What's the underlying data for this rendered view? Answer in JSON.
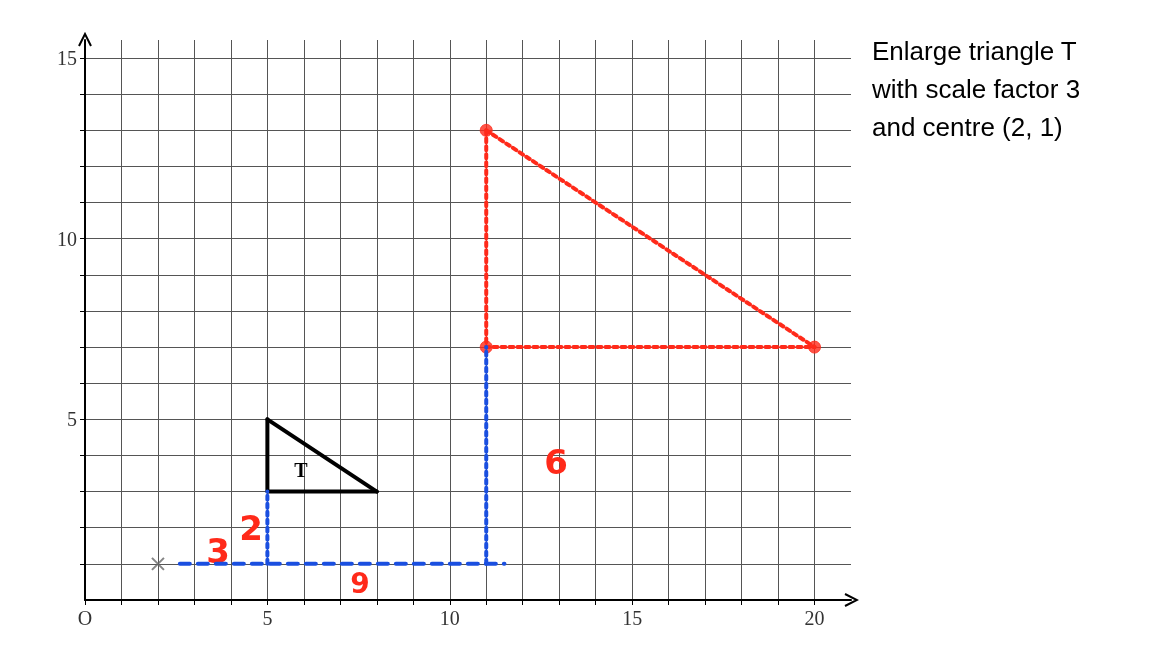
{
  "chart_data": {
    "type": "line",
    "xlim": [
      0,
      21
    ],
    "ylim": [
      0,
      15.5
    ],
    "xticks": [
      {
        "value": 0,
        "label": "O"
      },
      {
        "value": 1,
        "label": null
      },
      {
        "value": 2,
        "label": null
      },
      {
        "value": 3,
        "label": null
      },
      {
        "value": 4,
        "label": null
      },
      5,
      {
        "value": 6,
        "label": null
      },
      {
        "value": 7,
        "label": null
      },
      {
        "value": 8,
        "label": null
      },
      {
        "value": 9,
        "label": null
      },
      10,
      {
        "value": 11,
        "label": null
      },
      {
        "value": 12,
        "label": null
      },
      {
        "value": 13,
        "label": null
      },
      {
        "value": 14,
        "label": null
      },
      15,
      {
        "value": 16,
        "label": null
      },
      {
        "value": 17,
        "label": null
      },
      {
        "value": 18,
        "label": null
      },
      {
        "value": 19,
        "label": null
      },
      20
    ],
    "yticks": [
      {
        "value": 1,
        "label": null
      },
      {
        "value": 2,
        "label": null
      },
      {
        "value": 3,
        "label": null
      },
      {
        "value": 4,
        "label": null
      },
      5,
      {
        "value": 6,
        "label": null
      },
      {
        "value": 7,
        "label": null
      },
      {
        "value": 8,
        "label": null
      },
      {
        "value": 9,
        "label": null
      },
      10,
      {
        "value": 11,
        "label": null
      },
      {
        "value": 12,
        "label": null
      },
      {
        "value": 13,
        "label": null
      },
      {
        "value": 14,
        "label": null
      },
      15
    ],
    "grid": true,
    "series": [
      {
        "color": "#000000",
        "x": [
          5,
          5,
          8
        ],
        "values": [
          5,
          3,
          3
        ],
        "line_style": "solid",
        "marker": "none"
      },
      {
        "color": "#000000",
        "x": [
          5,
          8
        ],
        "values": [
          5,
          3
        ],
        "line_style": "solid",
        "marker": "none"
      },
      {
        "color": "#ff2a1a",
        "x": [
          11,
          11,
          20
        ],
        "values": [
          13,
          7,
          7
        ],
        "line_style": "dotted",
        "marker": "none"
      },
      {
        "color": "#ff2a1a",
        "x": [
          11,
          20
        ],
        "values": [
          13,
          7
        ],
        "line_style": "dotted",
        "marker": "none"
      },
      {
        "type": "scatter",
        "color": "#ff2a1a",
        "x": [
          11,
          11,
          20
        ],
        "values": [
          13,
          7,
          7
        ],
        "marker": "circle"
      },
      {
        "color": "#1a4fe0",
        "x": [
          2.6,
          11.5
        ],
        "values": [
          1,
          1
        ],
        "line_style": "dashed",
        "marker": "none"
      },
      {
        "color": "#1a4fe0",
        "x": [
          5,
          5
        ],
        "values": [
          1,
          3
        ],
        "line_style": "dotted",
        "marker": "none"
      },
      {
        "color": "#1a4fe0",
        "x": [
          11,
          11
        ],
        "values": [
          1,
          7
        ],
        "line_style": "dotted",
        "marker": "none"
      },
      {
        "type": "scatter",
        "color": "#666666",
        "x": [
          2
        ],
        "values": [
          1
        ],
        "marker": "cross"
      }
    ],
    "annotations": [
      "Enlarge triangle T with scale factor 3 and centre (2, 1)",
      "T",
      "3",
      "2",
      "9",
      "6"
    ]
  }
}
